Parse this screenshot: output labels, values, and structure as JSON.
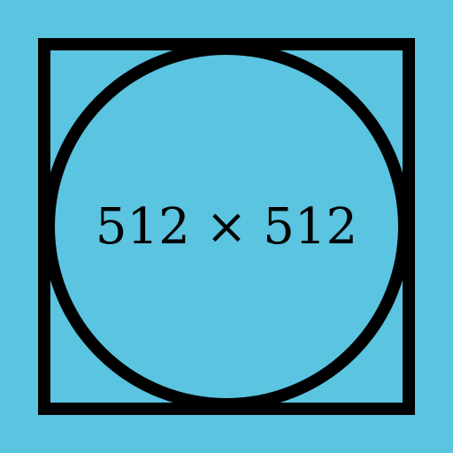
{
  "placeholder": {
    "text": "512 × 512",
    "colors": {
      "background": "#5bc4e0",
      "stroke": "#000000",
      "text": "#000000"
    }
  }
}
